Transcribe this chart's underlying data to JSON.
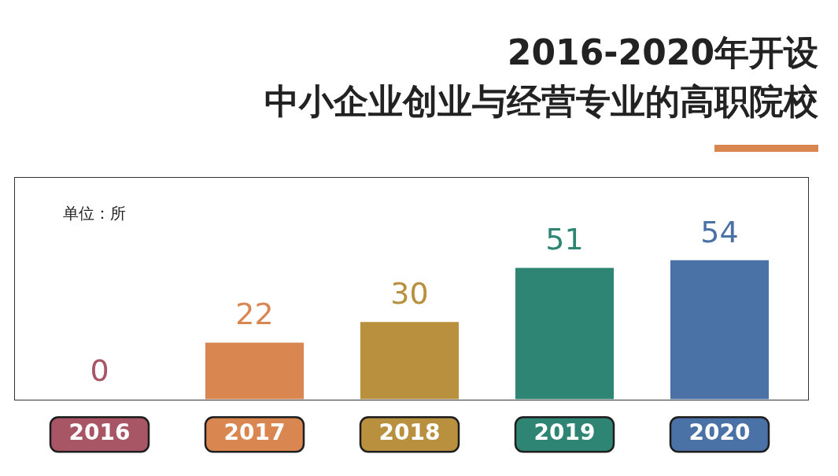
{
  "chart_data": {
    "type": "bar",
    "title": "2016-2020年开设",
    "subtitle": "中小企业创业与经营专业的高职院校",
    "categories": [
      "2016",
      "2017",
      "2018",
      "2019",
      "2020"
    ],
    "values": [
      0,
      22,
      30,
      51,
      54
    ],
    "colors": [
      "#a85565",
      "#d98650",
      "#b8903e",
      "#2e8574",
      "#4a72a6"
    ],
    "data_labels": true,
    "annotations": [
      "单位：所"
    ]
  }
}
